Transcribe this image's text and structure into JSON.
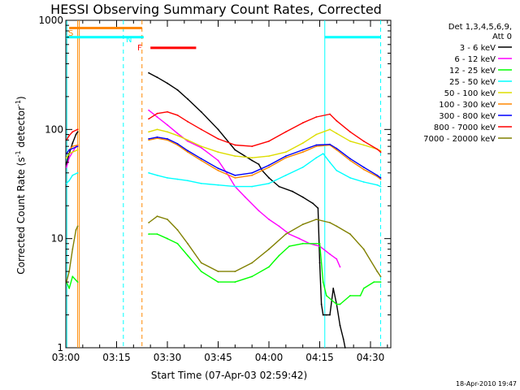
{
  "chart_data": {
    "type": "line",
    "title": "HESSI Observing Summary Count Rates, Corrected",
    "xlabel": "Start Time (07-Apr-03 02:59:42)",
    "ylabel": "Corrected Count Rate (s⁻¹ detector⁻¹)",
    "ylabel_main": "Corrected Count Rate (s",
    "ylabel_mid": " detector",
    "ylabel_end": ")",
    "ylabel_sup": "-1",
    "yscale": "log",
    "ylim": [
      1,
      1000
    ],
    "xlim_minutes": [
      0,
      96
    ],
    "x_ticks": [
      "03:00",
      "03:15",
      "03:30",
      "03:45",
      "04:00",
      "04:15",
      "04:30"
    ],
    "y_ticks": [
      "1",
      "10",
      "100",
      "1000"
    ],
    "timestamp": "18-Apr-2010 19:47",
    "legend": {
      "header_line1": "Det 1,3,4,5,6,9,",
      "header_line2": "Att 0",
      "placement": "right"
    },
    "flags": [
      {
        "label": "S",
        "color": "#ff8800"
      },
      {
        "label": "N",
        "color": "#00ffff"
      },
      {
        "label": "F",
        "color": "#ff0000"
      }
    ],
    "flag_bars": [
      {
        "name": "S",
        "color": "#ff8800",
        "start": 1,
        "end": 22.5,
        "y": 850
      },
      {
        "name": "N",
        "color": "#00ffff",
        "start": 0,
        "end": 23,
        "y": 700
      },
      {
        "name": "N",
        "color": "#00ffff",
        "start": 76.5,
        "end": 93,
        "y": 700
      },
      {
        "name": "F",
        "color": "#ff0000",
        "start": 25,
        "end": 38.5,
        "y": 560
      }
    ],
    "vlines": [
      {
        "x": 0.3,
        "color": "#00ffff",
        "style": "solid"
      },
      {
        "x": 3.5,
        "color": "#ff8800",
        "style": "solid"
      },
      {
        "x": 4.0,
        "color": "#ff8800",
        "style": "solid"
      },
      {
        "x": 17.0,
        "color": "#00ffff",
        "style": "dashed"
      },
      {
        "x": 22.5,
        "color": "#ff8800",
        "style": "dashed"
      },
      {
        "x": 76.5,
        "color": "#00ffff",
        "style": "solid"
      },
      {
        "x": 93.0,
        "color": "#00ffff",
        "style": "dashed"
      }
    ],
    "series": [
      {
        "name": "3 - 6 keV",
        "color": "#000000",
        "segments": [
          [
            [
              0.2,
              48
            ],
            [
              1,
              60
            ],
            [
              2,
              75
            ],
            [
              3,
              90
            ],
            [
              3.5,
              95
            ]
          ],
          [
            [
              24.5,
              330
            ],
            [
              27,
              300
            ],
            [
              30,
              265
            ],
            [
              33,
              230
            ],
            [
              36,
              190
            ],
            [
              40,
              145
            ],
            [
              45,
              100
            ],
            [
              50,
              65
            ],
            [
              55,
              52
            ],
            [
              57,
              48
            ],
            [
              58,
              42
            ],
            [
              60,
              36
            ],
            [
              63,
              30
            ],
            [
              67,
              27
            ],
            [
              70,
              24
            ],
            [
              73,
              21
            ],
            [
              74.5,
              19
            ],
            [
              75,
              6
            ],
            [
              75.5,
              2.5
            ],
            [
              76,
              2
            ],
            [
              77,
              2
            ],
            [
              78,
              2
            ],
            [
              79,
              3.5
            ],
            [
              80,
              2.5
            ],
            [
              81,
              1.6
            ],
            [
              82,
              1.2
            ],
            [
              82.5,
              1
            ]
          ]
        ]
      },
      {
        "name": "6 - 12 keV",
        "color": "#ff00ff",
        "segments": [
          [
            [
              0.2,
              45
            ],
            [
              1,
              55
            ],
            [
              3,
              70
            ],
            [
              3.5,
              72
            ]
          ],
          [
            [
              24.5,
              150
            ],
            [
              27,
              130
            ],
            [
              30,
              110
            ],
            [
              33,
              92
            ],
            [
              36,
              78
            ],
            [
              40,
              68
            ],
            [
              45,
              52
            ],
            [
              48,
              38
            ],
            [
              50,
              30
            ],
            [
              53,
              24
            ],
            [
              57,
              18
            ],
            [
              60,
              15
            ],
            [
              63,
              13
            ],
            [
              66,
              11
            ],
            [
              69,
              10
            ],
            [
              72,
              9
            ],
            [
              75,
              8.5
            ],
            [
              78,
              7.2
            ],
            [
              80,
              6.5
            ],
            [
              81,
              5.5
            ]
          ]
        ]
      },
      {
        "name": "12 - 25 keV",
        "color": "#00ff00",
        "segments": [
          [
            [
              0.2,
              4
            ],
            [
              1,
              3.5
            ],
            [
              2,
              4.5
            ],
            [
              3.5,
              4
            ]
          ],
          [
            [
              24.5,
              11
            ],
            [
              27,
              11
            ],
            [
              30,
              10
            ],
            [
              33,
              9
            ],
            [
              36,
              7
            ],
            [
              40,
              5
            ],
            [
              45,
              4
            ],
            [
              50,
              4
            ],
            [
              55,
              4.5
            ],
            [
              60,
              5.5
            ],
            [
              63,
              7
            ],
            [
              66,
              8.5
            ],
            [
              70,
              9
            ],
            [
              75,
              9
            ],
            [
              76,
              4
            ],
            [
              77,
              3
            ],
            [
              80,
              2.5
            ],
            [
              81,
              2.5
            ],
            [
              84,
              3
            ],
            [
              87,
              3
            ],
            [
              88,
              3.5
            ],
            [
              91,
              4
            ],
            [
              93,
              4
            ]
          ]
        ]
      },
      {
        "name": "25 - 50 keV",
        "color": "#00ffff",
        "segments": [
          [
            [
              0.2,
              32
            ],
            [
              1,
              34
            ],
            [
              2,
              38
            ],
            [
              3.5,
              40
            ]
          ],
          [
            [
              24.5,
              40
            ],
            [
              27,
              38
            ],
            [
              30,
              36
            ],
            [
              33,
              35
            ],
            [
              36,
              34
            ],
            [
              40,
              32
            ],
            [
              45,
              31
            ],
            [
              50,
              30
            ],
            [
              55,
              30
            ],
            [
              60,
              32
            ],
            [
              65,
              38
            ],
            [
              70,
              45
            ],
            [
              74,
              55
            ],
            [
              76,
              60
            ],
            [
              78,
              50
            ],
            [
              80,
              42
            ],
            [
              84,
              36
            ],
            [
              88,
              33
            ],
            [
              92,
              31
            ],
            [
              93,
              30
            ]
          ]
        ]
      },
      {
        "name": "50 - 100 keV",
        "color": "#dddd00",
        "segments": [
          [
            [
              0.2,
              55
            ],
            [
              1,
              60
            ],
            [
              2,
              62
            ],
            [
              3.5,
              65
            ]
          ],
          [
            [
              24.5,
              95
            ],
            [
              27,
              100
            ],
            [
              30,
              95
            ],
            [
              33,
              88
            ],
            [
              36,
              80
            ],
            [
              40,
              70
            ],
            [
              45,
              62
            ],
            [
              50,
              57
            ],
            [
              55,
              55
            ],
            [
              60,
              57
            ],
            [
              65,
              62
            ],
            [
              70,
              75
            ],
            [
              74,
              90
            ],
            [
              78,
              100
            ],
            [
              80,
              92
            ],
            [
              84,
              78
            ],
            [
              88,
              72
            ],
            [
              92,
              66
            ],
            [
              93,
              64
            ]
          ]
        ]
      },
      {
        "name": "100 - 300 keV",
        "color": "#ff8800",
        "segments": [
          [
            [
              0.2,
              60
            ],
            [
              1,
              65
            ],
            [
              2,
              70
            ],
            [
              3.5,
              72
            ]
          ],
          [
            [
              24.5,
              80
            ],
            [
              27,
              83
            ],
            [
              30,
              80
            ],
            [
              33,
              72
            ],
            [
              36,
              62
            ],
            [
              40,
              52
            ],
            [
              45,
              42
            ],
            [
              50,
              36
            ],
            [
              55,
              38
            ],
            [
              60,
              45
            ],
            [
              65,
              55
            ],
            [
              70,
              62
            ],
            [
              74,
              70
            ],
            [
              78,
              72
            ],
            [
              80,
              65
            ],
            [
              84,
              52
            ],
            [
              88,
              43
            ],
            [
              92,
              37
            ],
            [
              93,
              35
            ]
          ]
        ]
      },
      {
        "name": "300 - 800 keV",
        "color": "#0000ff",
        "segments": [
          [
            [
              0.2,
              60
            ],
            [
              1,
              65
            ],
            [
              3.5,
              70
            ]
          ],
          [
            [
              24.5,
              82
            ],
            [
              27,
              85
            ],
            [
              30,
              82
            ],
            [
              33,
              74
            ],
            [
              36,
              64
            ],
            [
              40,
              54
            ],
            [
              45,
              44
            ],
            [
              50,
              38
            ],
            [
              55,
              40
            ],
            [
              60,
              47
            ],
            [
              65,
              57
            ],
            [
              70,
              65
            ],
            [
              74,
              72
            ],
            [
              78,
              73
            ],
            [
              80,
              67
            ],
            [
              84,
              54
            ],
            [
              88,
              45
            ],
            [
              92,
              38
            ],
            [
              93,
              36
            ]
          ]
        ]
      },
      {
        "name": "800 - 7000 keV",
        "color": "#ff0000",
        "segments": [
          [
            [
              0.2,
              80
            ],
            [
              1,
              88
            ],
            [
              2,
              95
            ],
            [
              3.5,
              100
            ]
          ],
          [
            [
              24.5,
              125
            ],
            [
              27,
              140
            ],
            [
              30,
              145
            ],
            [
              33,
              135
            ],
            [
              36,
              118
            ],
            [
              40,
              100
            ],
            [
              45,
              82
            ],
            [
              50,
              72
            ],
            [
              55,
              70
            ],
            [
              60,
              78
            ],
            [
              65,
              95
            ],
            [
              70,
              115
            ],
            [
              74,
              130
            ],
            [
              78,
              138
            ],
            [
              80,
              120
            ],
            [
              84,
              95
            ],
            [
              88,
              78
            ],
            [
              92,
              66
            ],
            [
              93,
              62
            ]
          ]
        ]
      },
      {
        "name": "7000 - 20000 keV",
        "color": "#808000",
        "segments": [
          [
            [
              0.2,
              4
            ],
            [
              1,
              5
            ],
            [
              2,
              8
            ],
            [
              3,
              12
            ],
            [
              3.5,
              13
            ]
          ],
          [
            [
              24.5,
              14
            ],
            [
              27,
              16
            ],
            [
              30,
              15
            ],
            [
              33,
              12
            ],
            [
              36,
              9
            ],
            [
              40,
              6
            ],
            [
              45,
              5
            ],
            [
              50,
              5
            ],
            [
              55,
              6
            ],
            [
              60,
              8
            ],
            [
              65,
              11
            ],
            [
              70,
              13.5
            ],
            [
              74,
              15
            ],
            [
              78,
              14
            ],
            [
              80,
              13
            ],
            [
              84,
              11
            ],
            [
              88,
              8
            ],
            [
              92,
              5
            ],
            [
              93,
              4.5
            ]
          ]
        ]
      }
    ]
  }
}
